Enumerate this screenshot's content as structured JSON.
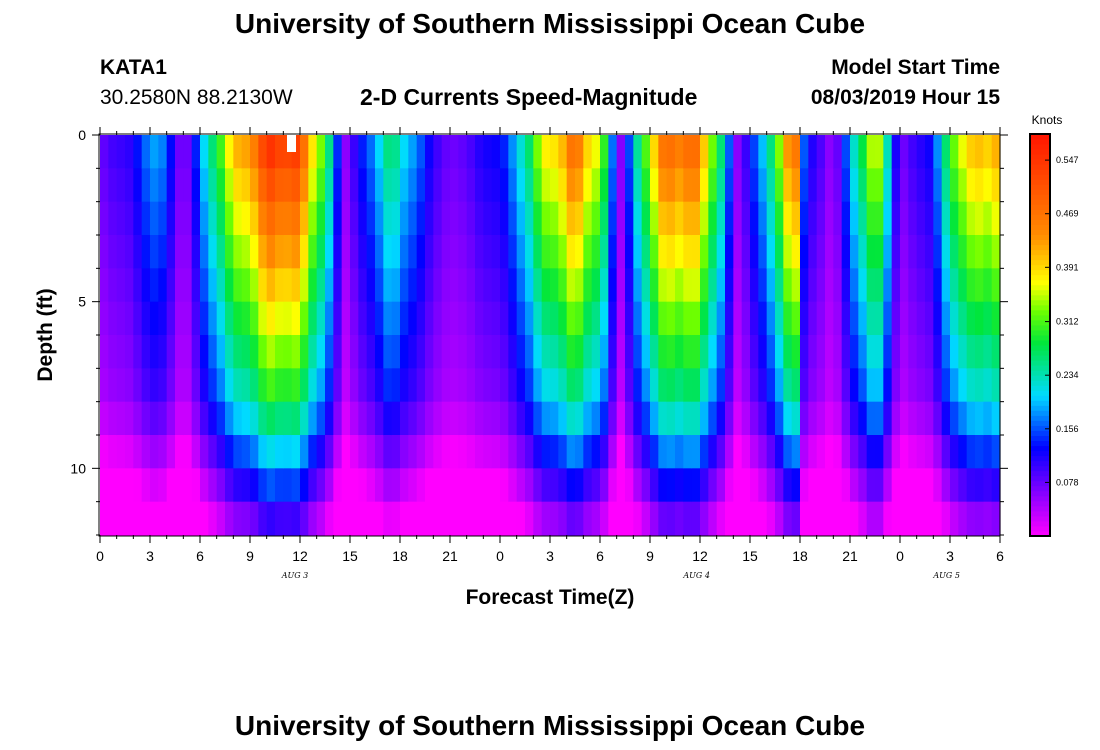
{
  "header": {
    "title": "University of Southern Mississippi Ocean Cube",
    "footer_title": "University of Southern Mississippi Ocean Cube",
    "station_id": "KATA1",
    "coordinates": "30.2580N 88.2130W",
    "subtitle": "2-D Currents Speed-Magnitude",
    "model_start_label": "Model Start Time",
    "model_start_value": "08/03/2019 Hour 15"
  },
  "chart_data": {
    "type": "heatmap",
    "title": "2-D Currents Speed-Magnitude",
    "xlabel": "Forecast Time(Z)",
    "ylabel": "Depth (ft)",
    "x_range_hours": [
      0,
      54
    ],
    "y_range_ft": [
      0,
      12
    ],
    "y_ticks": [
      0,
      5,
      10
    ],
    "x_tick_hours": [
      0,
      3,
      6,
      9,
      12,
      15,
      18,
      21,
      24,
      27,
      30,
      33,
      36,
      39,
      42,
      45,
      48,
      51,
      54
    ],
    "x_tick_labels": [
      "0",
      "3",
      "6",
      "9",
      "12",
      "15",
      "18",
      "21",
      "0",
      "3",
      "6",
      "9",
      "12",
      "15",
      "18",
      "21",
      "0",
      "3",
      "6"
    ],
    "day_labels": [
      {
        "text": "AUG 3",
        "hour": 11.7
      },
      {
        "text": "AUG 4",
        "hour": 35.8
      },
      {
        "text": "AUG 5",
        "hour": 50.8
      }
    ],
    "colorbar": {
      "unit": "Knots",
      "min": 0.0,
      "max": 0.585,
      "ticks": [
        "0.078",
        "0.156",
        "0.234",
        "0.312",
        "0.391",
        "0.469",
        "0.547"
      ]
    },
    "time_profile_knots": [
      {
        "h": 0,
        "v": 0.08
      },
      {
        "h": 2,
        "v": 0.12
      },
      {
        "h": 3.5,
        "v": 0.21
      },
      {
        "h": 5,
        "v": 0.05
      },
      {
        "h": 7.5,
        "v": 0.36
      },
      {
        "h": 10.5,
        "v": 0.57
      },
      {
        "h": 12,
        "v": 0.52
      },
      {
        "h": 13.5,
        "v": 0.3
      },
      {
        "h": 14.7,
        "v": 0.06
      },
      {
        "h": 17.5,
        "v": 0.27
      },
      {
        "h": 19.5,
        "v": 0.14
      },
      {
        "h": 21,
        "v": 0.07
      },
      {
        "h": 24.5,
        "v": 0.15
      },
      {
        "h": 26.5,
        "v": 0.36
      },
      {
        "h": 28.5,
        "v": 0.48
      },
      {
        "h": 30,
        "v": 0.36
      },
      {
        "h": 31.2,
        "v": 0.06
      },
      {
        "h": 33.5,
        "v": 0.46
      },
      {
        "h": 35.5,
        "v": 0.5
      },
      {
        "h": 37,
        "v": 0.32
      },
      {
        "h": 38.2,
        "v": 0.06
      },
      {
        "h": 39.8,
        "v": 0.2
      },
      {
        "h": 41.7,
        "v": 0.5
      },
      {
        "h": 42.3,
        "v": 0.14
      },
      {
        "h": 44,
        "v": 0.05
      },
      {
        "h": 46.5,
        "v": 0.4
      },
      {
        "h": 48,
        "v": 0.07
      },
      {
        "h": 50,
        "v": 0.14
      },
      {
        "h": 51.5,
        "v": 0.38
      },
      {
        "h": 54,
        "v": 0.44
      }
    ]
  }
}
